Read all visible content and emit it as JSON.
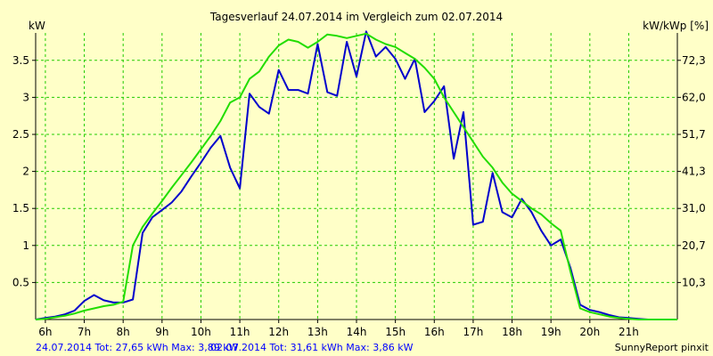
{
  "chart_data": {
    "type": "line",
    "title": "Tagesverlauf 24.07.2014 im Vergleich zum 02.07.2014",
    "ylabel_left": "kW",
    "ylabel_right": "kW/kWp [%]",
    "xlim": [
      5.75,
      22.25
    ],
    "ylim": [
      0,
      3.87
    ],
    "x_ticks": [
      6,
      7,
      8,
      9,
      10,
      11,
      12,
      13,
      14,
      15,
      16,
      17,
      18,
      19,
      20,
      21
    ],
    "x_tick_labels": [
      "6h",
      "7h",
      "8h",
      "9h",
      "10h",
      "11h",
      "12h",
      "13h",
      "14h",
      "15h",
      "16h",
      "17h",
      "18h",
      "19h",
      "20h",
      "21h"
    ],
    "y_ticks": [
      0.5,
      1,
      1.5,
      2,
      2.5,
      3,
      3.5
    ],
    "y_tick_labels": [
      "0.5",
      "1",
      "1.5",
      "2",
      "2.5",
      "3",
      "3.5"
    ],
    "right_ticks": [
      {
        "y": 0.5,
        "label": "10,3"
      },
      {
        "y": 1.0,
        "label": "20,7"
      },
      {
        "y": 1.5,
        "label": "31,0"
      },
      {
        "y": 2.0,
        "label": "41,3"
      },
      {
        "y": 2.5,
        "label": "51,7"
      },
      {
        "y": 3.0,
        "label": "62,0"
      },
      {
        "y": 3.5,
        "label": "72,3"
      }
    ],
    "grid": true,
    "series": [
      {
        "color": "#0000cc",
        "x": [
          5.75,
          6.0,
          6.25,
          6.5,
          6.75,
          7.0,
          7.25,
          7.5,
          7.75,
          8.0,
          8.25,
          8.5,
          8.75,
          9.0,
          9.25,
          9.5,
          9.75,
          10.0,
          10.25,
          10.5,
          10.75,
          11.0,
          11.25,
          11.5,
          11.75,
          12.0,
          12.25,
          12.5,
          12.75,
          13.0,
          13.25,
          13.5,
          13.75,
          14.0,
          14.25,
          14.5,
          14.75,
          15.0,
          15.25,
          15.5,
          15.75,
          16.0,
          16.25,
          16.5,
          16.75,
          17.0,
          17.25,
          17.5,
          17.75,
          18.0,
          18.25,
          18.5,
          18.75,
          19.0,
          19.25,
          19.5,
          19.75,
          20.0,
          20.25,
          20.5,
          20.75,
          21.0,
          21.25,
          21.5
        ],
        "y": [
          0.0,
          0.02,
          0.04,
          0.07,
          0.12,
          0.25,
          0.33,
          0.26,
          0.23,
          0.23,
          0.27,
          1.17,
          1.38,
          1.48,
          1.58,
          1.73,
          1.93,
          2.12,
          2.32,
          2.48,
          2.05,
          1.77,
          3.05,
          2.87,
          2.78,
          3.37,
          3.1,
          3.1,
          3.05,
          3.72,
          3.07,
          3.02,
          3.75,
          3.28,
          3.89,
          3.55,
          3.68,
          3.52,
          3.25,
          3.52,
          2.8,
          2.95,
          3.15,
          2.17,
          2.8,
          1.28,
          1.32,
          1.98,
          1.45,
          1.38,
          1.63,
          1.45,
          1.2,
          1.0,
          1.08,
          0.7,
          0.2,
          0.13,
          0.1,
          0.06,
          0.03,
          0.02,
          0.01,
          0.0
        ]
      },
      {
        "color": "#22dd00",
        "x": [
          5.75,
          6.0,
          6.25,
          6.5,
          6.75,
          7.0,
          7.25,
          7.5,
          7.75,
          8.0,
          8.25,
          8.5,
          8.75,
          9.0,
          9.25,
          9.5,
          9.75,
          10.0,
          10.25,
          10.5,
          10.75,
          11.0,
          11.25,
          11.5,
          11.75,
          12.0,
          12.25,
          12.5,
          12.75,
          13.0,
          13.25,
          13.5,
          13.75,
          14.0,
          14.25,
          14.5,
          14.75,
          15.0,
          15.25,
          15.5,
          15.75,
          16.0,
          16.25,
          16.5,
          16.75,
          17.0,
          17.25,
          17.5,
          17.75,
          18.0,
          18.25,
          18.5,
          18.75,
          19.0,
          19.25,
          19.5,
          19.75,
          20.0,
          20.25,
          20.5,
          20.75,
          21.0,
          21.25,
          21.5,
          21.75,
          22.0,
          22.25
        ],
        "y": [
          0.0,
          0.01,
          0.03,
          0.05,
          0.08,
          0.12,
          0.15,
          0.18,
          0.2,
          0.24,
          1.0,
          1.25,
          1.43,
          1.6,
          1.78,
          1.95,
          2.12,
          2.3,
          2.48,
          2.68,
          2.93,
          3.0,
          3.25,
          3.35,
          3.55,
          3.7,
          3.78,
          3.75,
          3.67,
          3.75,
          3.85,
          3.83,
          3.8,
          3.83,
          3.86,
          3.78,
          3.72,
          3.68,
          3.6,
          3.52,
          3.4,
          3.25,
          3.0,
          2.8,
          2.6,
          2.4,
          2.2,
          2.05,
          1.85,
          1.7,
          1.6,
          1.5,
          1.42,
          1.3,
          1.2,
          0.65,
          0.15,
          0.1,
          0.07,
          0.04,
          0.02,
          0.01,
          0.0,
          0.0,
          0.0,
          0.0,
          0.0
        ]
      }
    ]
  },
  "footer": {
    "left": "24.07.2014 Tot: 27,65 kWh Max: 3,89 kW",
    "middle": "02.07.2014 Tot: 31,61 kWh Max: 3,86 kW",
    "right": "SunnyReport pinxit"
  },
  "colors": {
    "background": "#ffffc8",
    "grid": "#22cc00",
    "axis": "#000000"
  }
}
